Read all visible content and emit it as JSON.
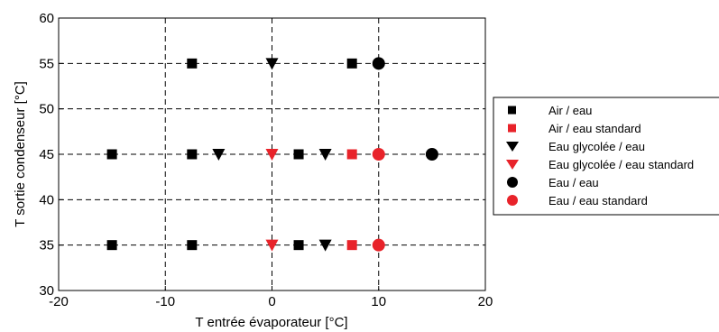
{
  "chart_data": {
    "type": "scatter",
    "title": "",
    "xlabel": "T entrée évaporateur [°C]",
    "ylabel": "T sortie condenseur [°C]",
    "xlim": [
      -20,
      20
    ],
    "ylim": [
      30,
      60
    ],
    "xticks": [
      -20,
      -10,
      0,
      10,
      20
    ],
    "yticks": [
      30,
      35,
      40,
      45,
      50,
      55,
      60
    ],
    "grid": true,
    "legend_position": "right",
    "colors": {
      "black": "#000000",
      "red": "#e8232a"
    },
    "series": [
      {
        "name": "Air / eau",
        "marker": "square",
        "color": "#000000",
        "points": [
          [
            -15,
            45
          ],
          [
            -15,
            35
          ],
          [
            -7.5,
            55
          ],
          [
            -7.5,
            45
          ],
          [
            -7.5,
            35
          ],
          [
            2.5,
            45
          ],
          [
            2.5,
            35
          ],
          [
            7.5,
            55
          ]
        ]
      },
      {
        "name": "Air / eau standard",
        "marker": "square",
        "color": "#e8232a",
        "points": [
          [
            7.5,
            45
          ],
          [
            7.5,
            35
          ]
        ]
      },
      {
        "name": "Eau glycolée / eau",
        "marker": "triangle-down",
        "color": "#000000",
        "points": [
          [
            -5,
            45
          ],
          [
            0,
            55
          ],
          [
            5,
            45
          ],
          [
            5,
            35
          ]
        ]
      },
      {
        "name": "Eau glycolée / eau standard",
        "marker": "triangle-down",
        "color": "#e8232a",
        "points": [
          [
            0,
            45
          ],
          [
            0,
            35
          ]
        ]
      },
      {
        "name": "Eau / eau",
        "marker": "circle",
        "color": "#000000",
        "points": [
          [
            10,
            55
          ],
          [
            15,
            45
          ]
        ]
      },
      {
        "name": "Eau / eau standard",
        "marker": "circle",
        "color": "#e8232a",
        "points": [
          [
            10,
            45
          ],
          [
            10,
            35
          ]
        ]
      }
    ]
  }
}
